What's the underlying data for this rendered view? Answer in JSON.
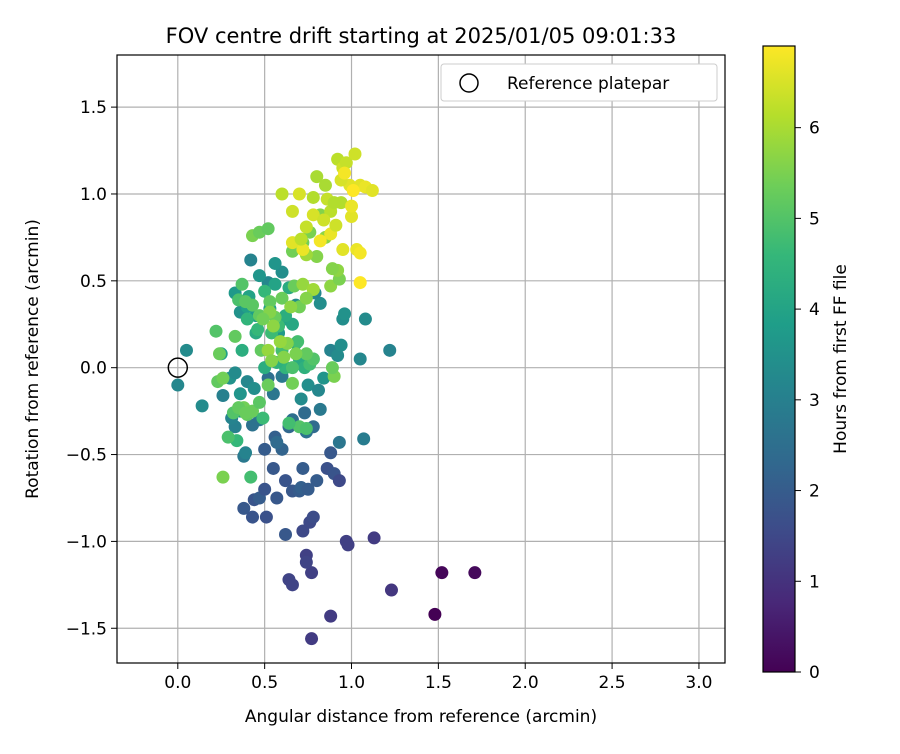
{
  "chart_data": {
    "type": "scatter",
    "title": "FOV centre drift starting at 2025/01/05 09:01:33",
    "xlabel": "Angular distance from reference (arcmin)",
    "ylabel": "Rotation from reference (arcmin)",
    "xlim": [
      -0.35,
      3.15
    ],
    "ylim": [
      -1.7,
      1.8
    ],
    "xticks": [
      "0.0",
      "0.5",
      "1.0",
      "1.5",
      "2.0",
      "2.5",
      "3.0"
    ],
    "yticks": [
      "−1.5",
      "−1.0",
      "−0.5",
      "0.0",
      "0.5",
      "1.0",
      "1.5"
    ],
    "grid": true,
    "legend_position": "top-right",
    "legend": [
      {
        "label": "Reference platepar",
        "marker": "open-circle"
      }
    ],
    "colorbar": {
      "label": "Hours from first FF file",
      "colormap": "viridis",
      "range": [
        0,
        6.9
      ],
      "ticks": [
        "0",
        "1",
        "2",
        "3",
        "4",
        "5",
        "6"
      ]
    },
    "reference_point": {
      "x": 0.0,
      "y": 0.0
    },
    "colors": {
      "viridis": [
        "#440154",
        "#482878",
        "#3e4a89",
        "#31688e",
        "#26828e",
        "#1f9e89",
        "#35b779",
        "#6ece58",
        "#b5de2b",
        "#fde725"
      ]
    },
    "points": [
      [
        1.48,
        -1.42,
        0.0
      ],
      [
        1.52,
        -1.18,
        0.1
      ],
      [
        1.71,
        -1.18,
        0.15
      ],
      [
        1.23,
        -1.28,
        1.1
      ],
      [
        1.13,
        -0.98,
        1.2
      ],
      [
        0.97,
        -1.0,
        1.3
      ],
      [
        0.98,
        -1.02,
        1.3
      ],
      [
        0.88,
        -1.43,
        1.2
      ],
      [
        0.77,
        -1.56,
        1.2
      ],
      [
        0.77,
        -1.18,
        1.3
      ],
      [
        0.74,
        -1.08,
        1.3
      ],
      [
        0.74,
        -1.12,
        1.4
      ],
      [
        0.64,
        -1.22,
        1.4
      ],
      [
        0.66,
        -1.25,
        1.4
      ],
      [
        0.72,
        -0.94,
        1.5
      ],
      [
        0.76,
        -0.89,
        1.5
      ],
      [
        0.78,
        -0.86,
        1.6
      ],
      [
        0.62,
        -0.96,
        1.9
      ],
      [
        0.51,
        -0.86,
        1.7
      ],
      [
        0.43,
        -0.86,
        1.8
      ],
      [
        0.38,
        -0.81,
        1.9
      ],
      [
        0.44,
        -0.76,
        1.8
      ],
      [
        0.47,
        -0.75,
        2.0
      ],
      [
        0.5,
        -0.7,
        1.8
      ],
      [
        0.57,
        -0.75,
        1.9
      ],
      [
        0.62,
        -0.65,
        1.8
      ],
      [
        0.66,
        -0.71,
        1.9
      ],
      [
        0.7,
        -0.71,
        2.0
      ],
      [
        0.71,
        -0.69,
        2.1
      ],
      [
        0.75,
        -0.7,
        2.0
      ],
      [
        0.8,
        -0.65,
        2.0
      ],
      [
        0.86,
        -0.58,
        1.7
      ],
      [
        0.9,
        -0.61,
        1.8
      ],
      [
        0.93,
        -0.65,
        1.5
      ],
      [
        0.88,
        -0.49,
        1.9
      ],
      [
        0.55,
        -0.58,
        1.9
      ],
      [
        0.5,
        -0.47,
        2.0
      ],
      [
        0.56,
        -0.4,
        2.1
      ],
      [
        0.6,
        -0.47,
        2.2
      ],
      [
        0.57,
        -0.43,
        2.4
      ],
      [
        0.64,
        -0.34,
        2.3
      ],
      [
        0.66,
        -0.3,
        2.5
      ],
      [
        0.73,
        -0.26,
        2.4
      ],
      [
        0.74,
        -0.37,
        2.6
      ],
      [
        0.78,
        -0.34,
        2.4
      ],
      [
        0.82,
        -0.24,
        2.8
      ],
      [
        0.93,
        -0.43,
        2.7
      ],
      [
        1.07,
        -0.41,
        2.9
      ],
      [
        0.72,
        -0.58,
        2.0
      ],
      [
        0.52,
        -0.06,
        2.5
      ],
      [
        0.55,
        -0.15,
        2.7
      ],
      [
        0.6,
        -0.05,
        2.8
      ],
      [
        0.47,
        -0.3,
        2.9
      ],
      [
        0.43,
        -0.33,
        2.6
      ],
      [
        0.38,
        -0.51,
        2.8
      ],
      [
        0.39,
        -0.49,
        3.1
      ],
      [
        0.33,
        -0.34,
        3.0
      ],
      [
        0.31,
        -0.29,
        3.1
      ],
      [
        0.26,
        -0.16,
        3.0
      ],
      [
        0.14,
        -0.22,
        3.3
      ],
      [
        0.0,
        -0.1,
        3.2
      ],
      [
        0.05,
        0.1,
        3.3
      ],
      [
        0.36,
        -0.15,
        3.6
      ],
      [
        0.36,
        -0.25,
        3.7
      ],
      [
        0.4,
        -0.08,
        3.2
      ],
      [
        0.44,
        -0.12,
        3.4
      ],
      [
        0.3,
        -0.06,
        3.5
      ],
      [
        0.33,
        -0.03,
        3.3
      ],
      [
        0.71,
        -0.18,
        3.3
      ],
      [
        0.75,
        -0.1,
        3.4
      ],
      [
        0.81,
        -0.13,
        3.2
      ],
      [
        0.84,
        -0.06,
        3.6
      ],
      [
        0.88,
        0.1,
        3.1
      ],
      [
        0.92,
        0.07,
        3.3
      ],
      [
        0.94,
        0.13,
        3.4
      ],
      [
        1.05,
        0.05,
        3.2
      ],
      [
        1.22,
        0.1,
        3.1
      ],
      [
        1.08,
        0.28,
        3.3
      ],
      [
        0.95,
        0.28,
        3.4
      ],
      [
        0.96,
        0.31,
        3.5
      ],
      [
        0.82,
        0.37,
        3.4
      ],
      [
        0.79,
        0.43,
        3.2
      ],
      [
        0.68,
        0.36,
        3.3
      ],
      [
        0.6,
        0.55,
        3.4
      ],
      [
        0.56,
        0.6,
        3.6
      ],
      [
        0.52,
        0.49,
        3.2
      ],
      [
        0.47,
        0.53,
        3.6
      ],
      [
        0.42,
        0.62,
        3.1
      ],
      [
        0.36,
        0.32,
        3.5
      ],
      [
        0.33,
        0.43,
        3.7
      ],
      [
        0.4,
        0.35,
        3.9
      ],
      [
        0.41,
        0.41,
        4.0
      ],
      [
        0.45,
        0.3,
        3.8
      ],
      [
        0.53,
        0.34,
        3.9
      ],
      [
        0.58,
        0.2,
        3.7
      ],
      [
        0.62,
        0.28,
        4.0
      ],
      [
        0.56,
        0.48,
        4.0
      ],
      [
        0.66,
        0.25,
        4.1
      ],
      [
        0.64,
        0.46,
        4.2
      ],
      [
        0.62,
        0.3,
        4.3
      ],
      [
        0.68,
        0.14,
        4.1
      ],
      [
        0.7,
        0.05,
        4.2
      ],
      [
        0.73,
        0.0,
        4.4
      ],
      [
        0.78,
        0.05,
        4.4
      ],
      [
        0.62,
        0.0,
        4.5
      ],
      [
        0.57,
        0.03,
        4.4
      ],
      [
        0.5,
        0.0,
        4.3
      ],
      [
        0.45,
        0.2,
        4.2
      ],
      [
        0.37,
        0.1,
        4.3
      ],
      [
        0.4,
        0.28,
        4.5
      ],
      [
        0.25,
        0.08,
        3.9
      ],
      [
        0.5,
        0.44,
        4.6
      ],
      [
        0.54,
        0.2,
        4.7
      ],
      [
        0.58,
        0.24,
        4.7
      ],
      [
        0.6,
        0.1,
        4.8
      ],
      [
        0.69,
        0.15,
        4.8
      ],
      [
        0.76,
        0.02,
        4.8
      ],
      [
        0.78,
        0.05,
        5.0
      ],
      [
        0.66,
        0.0,
        4.9
      ],
      [
        0.46,
        0.22,
        4.6
      ],
      [
        0.35,
        0.39,
        4.9
      ],
      [
        0.37,
        0.48,
        5.0
      ],
      [
        0.43,
        0.36,
        5.1
      ],
      [
        0.47,
        0.3,
        5.2
      ],
      [
        0.53,
        0.38,
        5.2
      ],
      [
        0.56,
        0.29,
        5.3
      ],
      [
        0.6,
        0.4,
        5.3
      ],
      [
        0.67,
        0.47,
        5.3
      ],
      [
        0.7,
        0.35,
        5.4
      ],
      [
        0.48,
        0.1,
        5.2
      ],
      [
        0.39,
        0.38,
        5.1
      ],
      [
        0.33,
        0.18,
        5.2
      ],
      [
        0.22,
        0.21,
        5.0
      ],
      [
        0.24,
        0.08,
        5.3
      ],
      [
        0.38,
        -0.23,
        5.4
      ],
      [
        0.4,
        -0.27,
        5.2
      ],
      [
        0.43,
        -0.25,
        5.3
      ],
      [
        0.47,
        -0.2,
        5.1
      ],
      [
        0.52,
        -0.1,
        5.3
      ],
      [
        0.66,
        -0.09,
        5.4
      ],
      [
        0.7,
        -0.34,
        5.0
      ],
      [
        0.74,
        -0.35,
        4.9
      ],
      [
        0.64,
        -0.32,
        4.8
      ],
      [
        0.34,
        -0.42,
        4.6
      ],
      [
        0.29,
        -0.4,
        4.9
      ],
      [
        0.32,
        -0.26,
        5.0
      ],
      [
        0.35,
        -0.23,
        5.2
      ],
      [
        0.39,
        -0.26,
        5.3
      ],
      [
        0.26,
        -0.63,
        5.5
      ],
      [
        0.42,
        -0.63,
        4.8
      ],
      [
        0.49,
        -0.29,
        4.7
      ],
      [
        0.23,
        -0.08,
        5.2
      ],
      [
        0.26,
        -0.06,
        5.4
      ],
      [
        0.9,
        -0.05,
        5.5
      ],
      [
        0.89,
        0.0,
        5.3
      ],
      [
        0.74,
        0.08,
        5.2
      ],
      [
        0.68,
        0.08,
        5.5
      ],
      [
        0.63,
        0.14,
        5.6
      ],
      [
        0.55,
        0.24,
        5.7
      ],
      [
        0.52,
        0.1,
        5.8
      ],
      [
        0.59,
        0.15,
        5.8
      ],
      [
        0.61,
        0.06,
        5.6
      ],
      [
        0.54,
        0.04,
        5.6
      ],
      [
        0.65,
        0.35,
        5.7
      ],
      [
        0.72,
        0.48,
        5.8
      ],
      [
        0.78,
        0.45,
        5.9
      ],
      [
        0.88,
        0.47,
        5.7
      ],
      [
        0.93,
        0.51,
        5.5
      ],
      [
        0.92,
        0.56,
        5.7
      ],
      [
        0.74,
        0.4,
        5.6
      ],
      [
        0.53,
        0.32,
        5.6
      ],
      [
        0.49,
        0.28,
        5.4
      ],
      [
        0.43,
        0.76,
        5.5
      ],
      [
        0.47,
        0.78,
        5.3
      ],
      [
        0.52,
        0.8,
        5.2
      ],
      [
        0.66,
        0.67,
        5.4
      ],
      [
        0.72,
        0.72,
        5.4
      ],
      [
        0.76,
        0.78,
        5.5
      ],
      [
        0.8,
        0.64,
        5.6
      ],
      [
        0.82,
        0.88,
        5.6
      ],
      [
        0.85,
        0.75,
        5.7
      ],
      [
        0.89,
        0.57,
        5.6
      ],
      [
        0.6,
        1.0,
        6.2
      ],
      [
        0.74,
        0.65,
        5.9
      ],
      [
        0.78,
        0.98,
        6.1
      ],
      [
        0.8,
        1.1,
        6.0
      ],
      [
        0.85,
        1.05,
        6.0
      ],
      [
        0.88,
        0.9,
        6.2
      ],
      [
        0.92,
        1.2,
        6.2
      ],
      [
        0.95,
        1.15,
        6.4
      ],
      [
        0.94,
        0.95,
        6.1
      ],
      [
        0.97,
        1.18,
        6.3
      ],
      [
        0.99,
        1.05,
        6.6
      ],
      [
        1.02,
        1.23,
        6.4
      ],
      [
        1.05,
        1.05,
        6.6
      ],
      [
        1.08,
        1.04,
        6.7
      ],
      [
        1.12,
        1.02,
        6.6
      ],
      [
        1.0,
        0.87,
        6.6
      ],
      [
        1.03,
        0.68,
        6.7
      ],
      [
        1.05,
        0.66,
        6.8
      ],
      [
        1.05,
        0.49,
        6.9
      ],
      [
        0.95,
        0.68,
        6.6
      ],
      [
        0.88,
        0.77,
        6.7
      ],
      [
        0.82,
        0.73,
        6.8
      ],
      [
        0.78,
        0.88,
        6.5
      ],
      [
        0.72,
        0.68,
        6.7
      ],
      [
        0.66,
        0.72,
        6.6
      ],
      [
        0.66,
        0.9,
        6.4
      ],
      [
        0.7,
        1.0,
        6.5
      ],
      [
        0.71,
        0.74,
        6.2
      ],
      [
        0.74,
        0.81,
        6.3
      ],
      [
        0.84,
        0.85,
        6.4
      ],
      [
        0.86,
        0.97,
        6.3
      ],
      [
        0.9,
        0.95,
        6.1
      ],
      [
        0.94,
        1.08,
        6.5
      ],
      [
        0.96,
        1.12,
        6.8
      ],
      [
        1.0,
        0.93,
        6.7
      ],
      [
        1.01,
        1.02,
        6.9
      ],
      [
        0.91,
        0.82,
        6.4
      ]
    ]
  }
}
